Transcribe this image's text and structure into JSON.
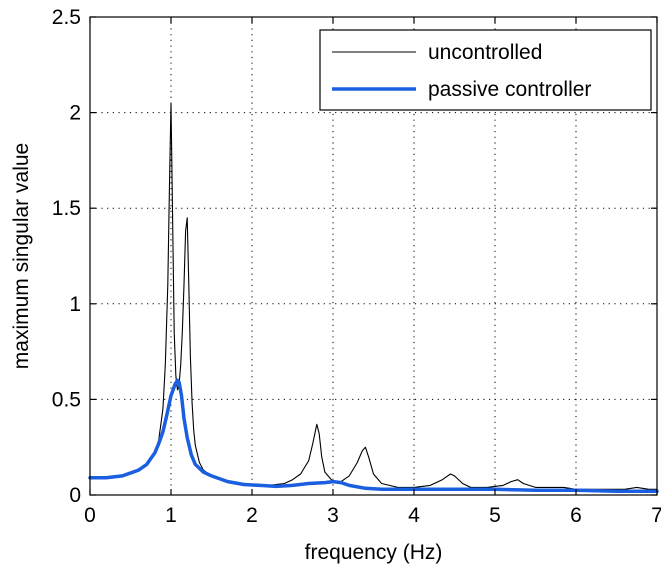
{
  "chart_data": {
    "type": "line",
    "xlabel": "frequency (Hz)",
    "ylabel": "maximum singular value",
    "xlim": [
      0,
      7
    ],
    "ylim": [
      0,
      2.5
    ],
    "xticks": [
      0,
      1,
      2,
      3,
      4,
      5,
      6,
      7
    ],
    "yticks": [
      0,
      0.5,
      1,
      1.5,
      2,
      2.5
    ],
    "xtick_labels": [
      "0",
      "1",
      "2",
      "3",
      "4",
      "5",
      "6",
      "7"
    ],
    "ytick_labels": [
      "0",
      "0.5",
      "1",
      "1.5",
      "2",
      "2.5"
    ],
    "grid": true,
    "legend_position": "top-right",
    "series": [
      {
        "name": "uncontrolled",
        "color": "#000000",
        "style": "thin",
        "x": [
          0,
          0.2,
          0.4,
          0.6,
          0.7,
          0.8,
          0.85,
          0.9,
          0.93,
          0.96,
          0.98,
          1.0,
          1.02,
          1.04,
          1.06,
          1.08,
          1.1,
          1.12,
          1.14,
          1.16,
          1.18,
          1.2,
          1.22,
          1.24,
          1.26,
          1.28,
          1.3,
          1.35,
          1.4,
          1.5,
          1.6,
          1.8,
          2.0,
          2.2,
          2.4,
          2.5,
          2.6,
          2.7,
          2.75,
          2.8,
          2.83,
          2.86,
          2.9,
          3.0,
          3.1,
          3.2,
          3.3,
          3.36,
          3.4,
          3.44,
          3.5,
          3.6,
          3.8,
          4.0,
          4.2,
          4.35,
          4.45,
          4.5,
          4.6,
          4.7,
          4.9,
          5.1,
          5.2,
          5.28,
          5.35,
          5.5,
          5.7,
          5.85,
          6.0,
          6.3,
          6.6,
          6.75,
          6.9,
          7.0
        ],
        "y": [
          0.09,
          0.09,
          0.1,
          0.13,
          0.16,
          0.22,
          0.29,
          0.45,
          0.68,
          1.1,
          1.6,
          2.05,
          1.45,
          0.85,
          0.62,
          0.55,
          0.58,
          0.68,
          0.85,
          1.1,
          1.38,
          1.45,
          1.1,
          0.72,
          0.48,
          0.34,
          0.26,
          0.17,
          0.13,
          0.1,
          0.08,
          0.06,
          0.05,
          0.05,
          0.06,
          0.08,
          0.11,
          0.18,
          0.27,
          0.37,
          0.32,
          0.2,
          0.12,
          0.07,
          0.07,
          0.1,
          0.17,
          0.23,
          0.25,
          0.2,
          0.11,
          0.06,
          0.04,
          0.04,
          0.05,
          0.08,
          0.11,
          0.1,
          0.06,
          0.04,
          0.04,
          0.05,
          0.07,
          0.08,
          0.06,
          0.04,
          0.04,
          0.04,
          0.03,
          0.03,
          0.03,
          0.04,
          0.03,
          0.03
        ]
      },
      {
        "name": "passive controller",
        "color": "#1a5fe0",
        "style": "thick",
        "x": [
          0,
          0.2,
          0.4,
          0.6,
          0.7,
          0.8,
          0.85,
          0.9,
          0.95,
          1.0,
          1.05,
          1.08,
          1.1,
          1.13,
          1.16,
          1.2,
          1.25,
          1.3,
          1.4,
          1.5,
          1.7,
          1.9,
          2.1,
          2.3,
          2.5,
          2.7,
          2.9,
          3.0,
          3.1,
          3.2,
          3.4,
          3.6,
          3.8,
          4.0,
          4.5,
          5.0,
          5.5,
          6.0,
          6.5,
          7.0
        ],
        "y": [
          0.09,
          0.09,
          0.1,
          0.13,
          0.16,
          0.22,
          0.27,
          0.33,
          0.42,
          0.52,
          0.58,
          0.6,
          0.59,
          0.52,
          0.4,
          0.3,
          0.21,
          0.16,
          0.12,
          0.1,
          0.07,
          0.055,
          0.05,
          0.045,
          0.05,
          0.06,
          0.065,
          0.07,
          0.065,
          0.05,
          0.035,
          0.03,
          0.03,
          0.03,
          0.03,
          0.03,
          0.025,
          0.025,
          0.02,
          0.02
        ]
      }
    ]
  }
}
